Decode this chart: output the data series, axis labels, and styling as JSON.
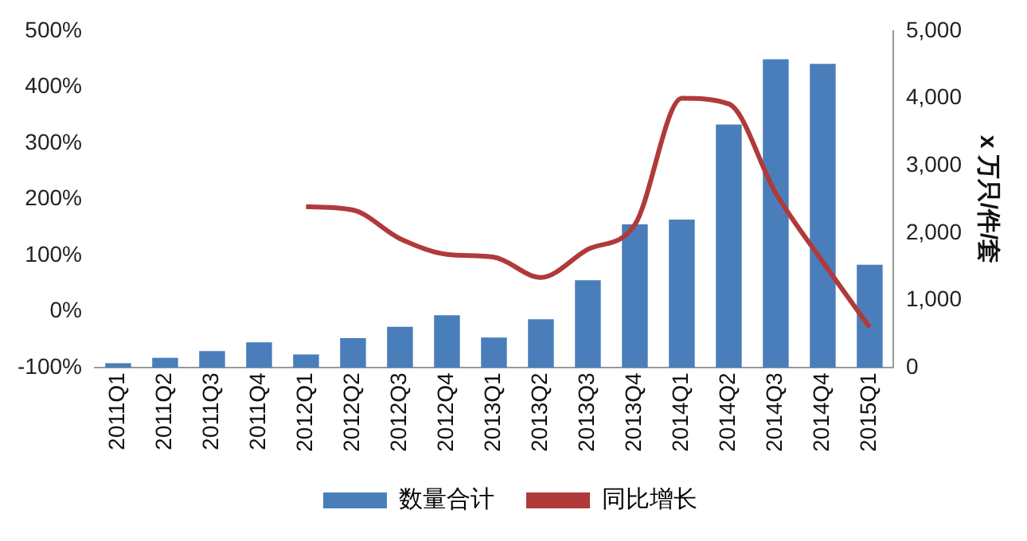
{
  "chart_data": {
    "type": "bar",
    "y2label": "x 万只/件/套",
    "categories": [
      "2011Q1",
      "2011Q2",
      "2011Q3",
      "2011Q4",
      "2012Q1",
      "2012Q2",
      "2012Q3",
      "2012Q4",
      "2013Q1",
      "2013Q2",
      "2013Q3",
      "2013Q4",
      "2014Q1",
      "2014Q2",
      "2014Q3",
      "2014Q4",
      "2015Q1"
    ],
    "series": [
      {
        "name": "数量合计",
        "axis": "y2",
        "color": "#4a7ebb",
        "values": [
          70,
          150,
          250,
          380,
          200,
          440,
          610,
          780,
          450,
          720,
          1300,
          2130,
          2200,
          3610,
          4580,
          4510,
          1530
        ]
      },
      {
        "name": "同比增长",
        "type": "line",
        "axis": "y",
        "color": "#b03a3a",
        "values": [
          null,
          null,
          null,
          null,
          187,
          181,
          130,
          102,
          97,
          61,
          111,
          155,
          380,
          370,
          211,
          89,
          -28
        ]
      }
    ],
    "ylim": [
      -100,
      500
    ],
    "yticks": [
      {
        "value": -100,
        "label": "-100%"
      },
      {
        "value": 0,
        "label": "0%"
      },
      {
        "value": 100,
        "label": "100%"
      },
      {
        "value": 200,
        "label": "200%"
      },
      {
        "value": 300,
        "label": "300%"
      },
      {
        "value": 400,
        "label": "400%"
      },
      {
        "value": 500,
        "label": "500%"
      }
    ],
    "y2lim": [
      0,
      5000
    ],
    "y2ticks": [
      0,
      {
        "value": 1000,
        "label": "1,000"
      },
      {
        "value": 2000,
        "label": "2,000"
      },
      {
        "value": 3000,
        "label": "3,000"
      },
      {
        "value": 4000,
        "label": "4,000"
      },
      {
        "value": 5000,
        "label": "5,000"
      }
    ],
    "grid": false,
    "legend": "bottom",
    "marker": "none",
    "line_style": "solid"
  }
}
